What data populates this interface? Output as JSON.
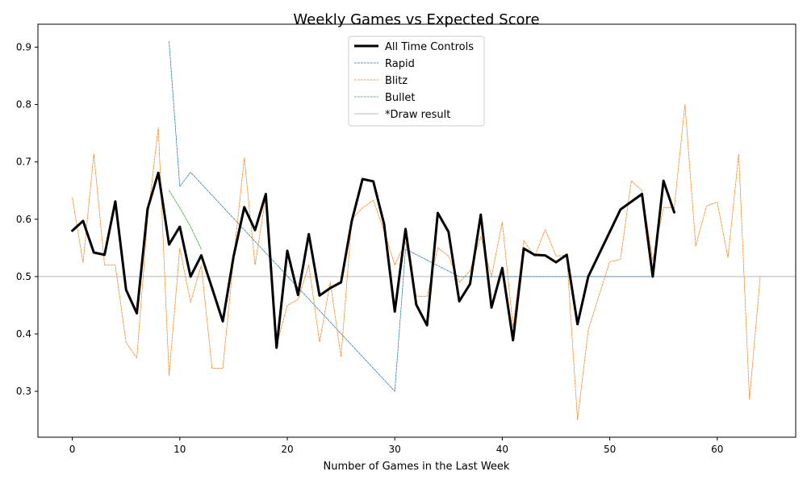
{
  "chart_data": {
    "type": "line",
    "title": "Weekly Games vs Expected Score",
    "xlabel": "Number of Games in the Last Week",
    "ylabel": "",
    "xlim": [
      -3.2,
      67.3
    ],
    "ylim": [
      0.22,
      0.94
    ],
    "xticks": [
      0,
      10,
      20,
      30,
      40,
      50,
      60
    ],
    "yticks": [
      0.3,
      0.4,
      0.5,
      0.6,
      0.7,
      0.8,
      0.9
    ],
    "grid": false,
    "legend_position": "top-center",
    "reference_line": {
      "name": "*Draw result",
      "y": 0.5,
      "color": "#a0a0a0"
    },
    "series": [
      {
        "name": "All Time Controls",
        "color": "#000000",
        "style": "solid",
        "width": 3,
        "x": [
          0,
          1,
          2,
          3,
          4,
          5,
          6,
          7,
          8,
          9,
          10,
          11,
          12,
          13,
          14,
          15,
          16,
          17,
          18,
          19,
          20,
          21,
          22,
          23,
          24,
          25,
          26,
          27,
          28,
          29,
          30,
          31,
          32,
          33,
          34,
          35,
          36,
          37,
          38,
          39,
          40,
          41,
          42,
          43,
          44,
          45,
          46,
          47,
          48,
          51,
          53,
          54,
          55,
          56
        ],
        "y": [
          0.58,
          0.597,
          0.542,
          0.538,
          0.631,
          0.477,
          0.436,
          0.618,
          0.681,
          0.556,
          0.587,
          0.5,
          0.537,
          0.48,
          0.422,
          0.535,
          0.621,
          0.581,
          0.644,
          0.376,
          0.545,
          0.468,
          0.574,
          0.467,
          0.48,
          0.49,
          0.597,
          0.67,
          0.666,
          0.592,
          0.439,
          0.583,
          0.451,
          0.415,
          0.611,
          0.578,
          0.457,
          0.487,
          0.608,
          0.446,
          0.515,
          0.389,
          0.549,
          0.538,
          0.537,
          0.525,
          0.538,
          0.417,
          0.5,
          0.617,
          0.644,
          0.5,
          0.667,
          0.612
        ]
      },
      {
        "name": "Rapid",
        "color": "#1f77b4",
        "style": "dashed",
        "width": 0.75,
        "x": [
          9,
          10,
          11,
          30,
          31,
          36,
          38,
          40,
          54
        ],
        "y": [
          0.91,
          0.657,
          0.682,
          0.3,
          0.548,
          0.5,
          0.5,
          0.5,
          0.5
        ]
      },
      {
        "name": "Blitz",
        "color": "#ff7f0e",
        "style": "dashed",
        "width": 0.75,
        "x": [
          0,
          1,
          2,
          3,
          4,
          5,
          6,
          7,
          8,
          9,
          10,
          11,
          12,
          13,
          14,
          15,
          16,
          17,
          18,
          19,
          20,
          21,
          22,
          23,
          24,
          25,
          26,
          27,
          28,
          29,
          30,
          31,
          32,
          33,
          34,
          35,
          36,
          37,
          38,
          39,
          40,
          41,
          42,
          43,
          44,
          45,
          46,
          47,
          48,
          49,
          50,
          51,
          52,
          53,
          54,
          55,
          56,
          57,
          58,
          59,
          60,
          61,
          62,
          63,
          64
        ],
        "y": [
          0.638,
          0.524,
          0.714,
          0.52,
          0.52,
          0.385,
          0.358,
          0.6,
          0.76,
          0.327,
          0.55,
          0.455,
          0.52,
          0.34,
          0.34,
          0.53,
          0.707,
          0.52,
          0.64,
          0.38,
          0.45,
          0.46,
          0.52,
          0.386,
          0.49,
          0.36,
          0.6,
          0.62,
          0.633,
          0.58,
          0.52,
          0.56,
          0.466,
          0.465,
          0.55,
          0.536,
          0.49,
          0.51,
          0.57,
          0.5,
          0.595,
          0.412,
          0.563,
          0.535,
          0.582,
          0.536,
          0.537,
          0.25,
          0.407,
          0.467,
          0.526,
          0.53,
          0.667,
          0.65,
          0.528,
          0.62,
          0.62,
          0.8,
          0.553,
          0.623,
          0.63,
          0.533,
          0.714,
          0.286,
          0.5
        ]
      },
      {
        "name": "Bullet",
        "color": "#2ca02c",
        "style": "dashed",
        "width": 0.75,
        "x": [
          9,
          10,
          11,
          12
        ],
        "y": [
          0.65,
          0.62,
          0.587,
          0.548
        ]
      }
    ]
  }
}
